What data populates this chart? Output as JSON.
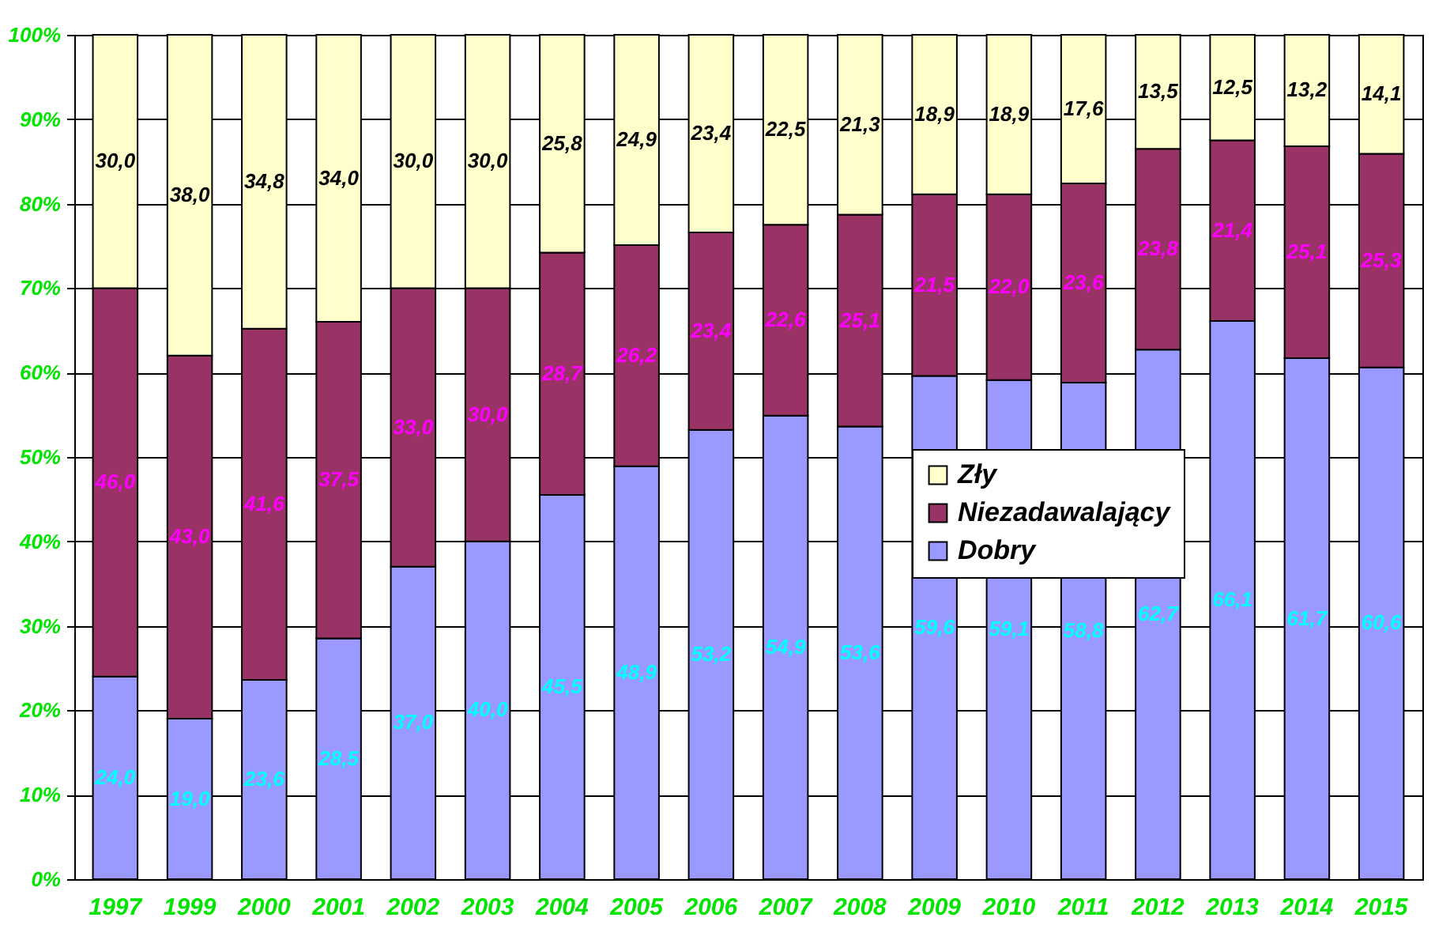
{
  "chart_data": {
    "type": "bar",
    "stacked": true,
    "categories": [
      "1997",
      "1999",
      "2000",
      "2001",
      "2002",
      "2003",
      "2004",
      "2005",
      "2006",
      "2007",
      "2008",
      "2009",
      "2010",
      "2011",
      "2012",
      "2013",
      "2014",
      "2015"
    ],
    "series": [
      {
        "name": "Dobry",
        "color": "#9999ff",
        "values": [
          24.0,
          19.0,
          23.6,
          28.5,
          37.0,
          40.0,
          45.5,
          48.9,
          53.2,
          54.9,
          53.6,
          59.6,
          59.1,
          58.8,
          62.7,
          66.1,
          61.7,
          60.6
        ],
        "value_labels": [
          "24,0",
          "19,0",
          "23,6",
          "28,5",
          "37,0",
          "40,0",
          "45,5",
          "48,9",
          "53,2",
          "54,9",
          "53,6",
          "59,6",
          "59,1",
          "58,8",
          "62,7",
          "66,1",
          "61,7",
          "60,6"
        ]
      },
      {
        "name": "Niezadawalający",
        "color": "#993366",
        "values": [
          46.0,
          43.0,
          41.6,
          37.5,
          33.0,
          30.0,
          28.7,
          26.2,
          23.4,
          22.6,
          25.1,
          21.5,
          22.0,
          23.6,
          23.8,
          21.4,
          25.1,
          25.3
        ],
        "value_labels": [
          "46,0",
          "43,0",
          "41,6",
          "37,5",
          "33,0",
          "30,0",
          "28,7",
          "26,2",
          "23,4",
          "22,6",
          "25,1",
          "21,5",
          "22,0",
          "23,6",
          "23,8",
          "21,4",
          "25,1",
          "25,3"
        ]
      },
      {
        "name": "Zły",
        "color": "#ffffcc",
        "values": [
          30.0,
          38.0,
          34.8,
          34.0,
          30.0,
          30.0,
          25.8,
          24.9,
          23.4,
          22.5,
          21.3,
          18.9,
          18.9,
          17.6,
          13.5,
          12.5,
          13.2,
          14.1
        ],
        "value_labels": [
          "30,0",
          "38,0",
          "34,8",
          "34,0",
          "30,0",
          "30,0",
          "25,8",
          "24,9",
          "23,4",
          "22,5",
          "21,3",
          "18,9",
          "18,9",
          "17,6",
          "13,5",
          "12,5",
          "13,2",
          "14,1"
        ]
      }
    ],
    "ylim": [
      0,
      100
    ],
    "yticks": [
      {
        "value": 0,
        "label": "0%"
      },
      {
        "value": 10,
        "label": "10%"
      },
      {
        "value": 20,
        "label": "20%"
      },
      {
        "value": 30,
        "label": "30%"
      },
      {
        "value": 40,
        "label": "40%"
      },
      {
        "value": 50,
        "label": "50%"
      },
      {
        "value": 60,
        "label": "60%"
      },
      {
        "value": 70,
        "label": "70%"
      },
      {
        "value": 80,
        "label": "80%"
      },
      {
        "value": 90,
        "label": "90%"
      },
      {
        "value": 100,
        "label": "100%"
      }
    ],
    "grid": "y",
    "legend": "right"
  }
}
